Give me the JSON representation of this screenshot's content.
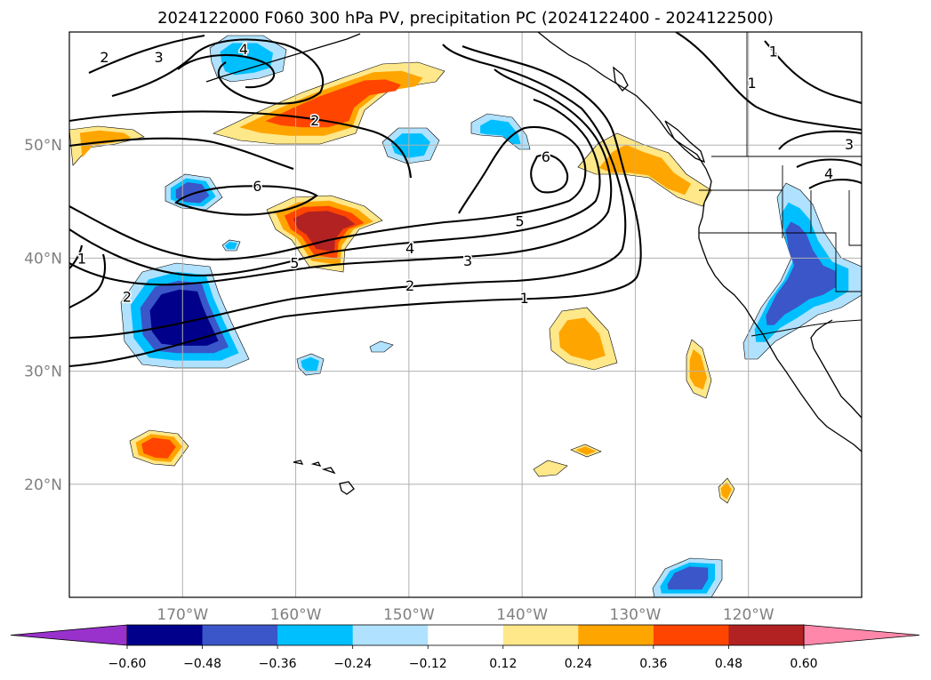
{
  "chart_data": {
    "type": "heatmap",
    "title": "2024122000 F060 300 hPa PV, precipitation PC (2024122400 - 2024122500)",
    "projection": "lat-lon map, North Pacific and western North America",
    "xlim": [
      -180,
      -110
    ],
    "ylim": [
      10,
      60
    ],
    "x_ticks": [
      "170°W",
      "160°W",
      "150°W",
      "140°W",
      "130°W",
      "120°W"
    ],
    "x_tick_values": [
      -170,
      -160,
      -150,
      -140,
      -130,
      -120
    ],
    "y_ticks": [
      "20°N",
      "30°N",
      "40°N",
      "50°N"
    ],
    "y_tick_values": [
      20,
      30,
      40,
      50
    ],
    "grid": true,
    "colorbar": {
      "orientation": "horizontal",
      "extend": "both",
      "tick_labels": [
        "−0.60",
        "−0.48",
        "−0.36",
        "−0.24",
        "−0.12",
        "0.12",
        "0.24",
        "0.36",
        "0.48",
        "0.60"
      ],
      "boundaries": [
        -0.6,
        -0.48,
        -0.36,
        -0.24,
        -0.12,
        0.12,
        0.24,
        0.36,
        0.48,
        0.6
      ],
      "colors": [
        "#9932cc",
        "#00008b",
        "#3a56c8",
        "#00bfff",
        "#b0e2ff",
        "#ffffff",
        "#ffe88a",
        "#ffa500",
        "#ff4500",
        "#b22222",
        "#ff88aa"
      ]
    },
    "pv_contour_levels": [
      1,
      2,
      3,
      4,
      5,
      6
    ],
    "pv_contour_labels": [
      {
        "text": "2",
        "lon": -176.9,
        "lat": 57.8
      },
      {
        "text": "3",
        "lon": -172.1,
        "lat": 57.8
      },
      {
        "text": "4",
        "lon": -164.6,
        "lat": 58.5
      },
      {
        "text": "2",
        "lon": -158.3,
        "lat": 52.2
      },
      {
        "text": "6",
        "lon": -163.4,
        "lat": 46.4
      },
      {
        "text": "5",
        "lon": -160.1,
        "lat": 39.6
      },
      {
        "text": "4",
        "lon": -149.9,
        "lat": 40.9
      },
      {
        "text": "3",
        "lon": -144.8,
        "lat": 39.8
      },
      {
        "text": "2",
        "lon": -149.9,
        "lat": 37.6
      },
      {
        "text": "1",
        "lon": -139.8,
        "lat": 36.5
      },
      {
        "text": "5",
        "lon": -140.2,
        "lat": 43.3
      },
      {
        "text": "6",
        "lon": -137.9,
        "lat": 49.0
      },
      {
        "text": "1",
        "lon": -117.8,
        "lat": 58.3
      },
      {
        "text": "1",
        "lon": -119.7,
        "lat": 55.5
      },
      {
        "text": "3",
        "lon": -111.1,
        "lat": 50.1
      },
      {
        "text": "4",
        "lon": -112.9,
        "lat": 47.5
      },
      {
        "text": "2",
        "lon": -174.9,
        "lat": 36.6
      },
      {
        "text": "1",
        "lon": -178.9,
        "lat": 40.0
      }
    ],
    "precip_pc_regions": [
      {
        "lon": -158.5,
        "lat": 52.5,
        "value": 0.4,
        "level": "0.36–0.48",
        "note": "elongated positive band"
      },
      {
        "lon": -158.5,
        "lat": 43.5,
        "value": 0.5,
        "level": "0.48–0.60"
      },
      {
        "lon": -177,
        "lat": 49.5,
        "value": 0.28,
        "level": "0.24–0.36"
      },
      {
        "lon": -133,
        "lat": 47.5,
        "value": 0.3,
        "level": "0.24–0.36"
      },
      {
        "lon": -136,
        "lat": 32.8,
        "value": 0.3,
        "level": "0.24–0.36"
      },
      {
        "lon": -123.5,
        "lat": 29.8,
        "value": 0.28,
        "level": "0.24–0.36"
      },
      {
        "lon": -171.5,
        "lat": 23.5,
        "value": 0.4,
        "level": "0.36–0.48"
      },
      {
        "lon": -135,
        "lat": 23.0,
        "value": 0.28,
        "level": "0.24–0.36"
      },
      {
        "lon": -138.5,
        "lat": 21.6,
        "value": 0.18,
        "level": "0.12–0.24"
      },
      {
        "lon": -122,
        "lat": 19.8,
        "value": 0.28,
        "level": "0.24–0.36"
      },
      {
        "lon": -172.5,
        "lat": 36.0,
        "value": -0.55,
        "level": "−0.60 to −0.48"
      },
      {
        "lon": -171.0,
        "lat": 45.9,
        "value": -0.4,
        "level": "−0.48 to −0.36"
      },
      {
        "lon": -164.5,
        "lat": 57.5,
        "value": -0.3,
        "level": "−0.36 to −0.24"
      },
      {
        "lon": -150.2,
        "lat": 50.0,
        "value": -0.3,
        "level": "−0.36 to −0.24"
      },
      {
        "lon": -141.6,
        "lat": 51.6,
        "value": -0.3,
        "level": "−0.36 to −0.24"
      },
      {
        "lon": -115.8,
        "lat": 37.0,
        "value": -0.45,
        "level": "−0.48 to −0.36"
      },
      {
        "lon": -125.0,
        "lat": 11.5,
        "value": -0.42,
        "level": "−0.48 to −0.36"
      },
      {
        "lon": -155.8,
        "lat": 30.7,
        "value": -0.28,
        "level": "−0.36 to −0.24"
      },
      {
        "lon": -152.4,
        "lat": 32.0,
        "value": -0.18,
        "level": "−0.24 to −0.12"
      },
      {
        "lon": -165.5,
        "lat": 41.0,
        "value": -0.28,
        "level": "−0.36 to −0.24"
      }
    ]
  }
}
